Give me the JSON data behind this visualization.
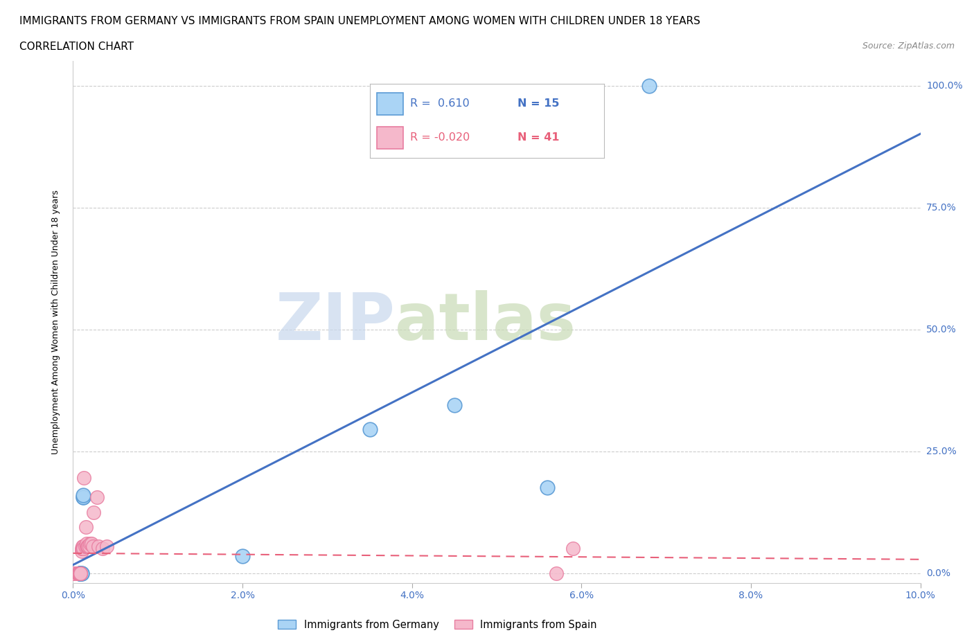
{
  "title_line1": "IMMIGRANTS FROM GERMANY VS IMMIGRANTS FROM SPAIN UNEMPLOYMENT AMONG WOMEN WITH CHILDREN UNDER 18 YEARS",
  "title_line2": "CORRELATION CHART",
  "source": "Source: ZipAtlas.com",
  "ylabel": "Unemployment Among Women with Children Under 18 years",
  "xlim": [
    0.0,
    0.1
  ],
  "ylim": [
    -0.02,
    1.05
  ],
  "xticks": [
    0.0,
    0.02,
    0.04,
    0.06,
    0.08,
    0.1
  ],
  "yticks": [
    0.0,
    0.25,
    0.5,
    0.75,
    1.0
  ],
  "xtick_labels": [
    "0.0%",
    "2.0%",
    "4.0%",
    "6.0%",
    "8.0%",
    "10.0%"
  ],
  "ytick_labels_right": [
    "0.0%",
    "25.0%",
    "50.0%",
    "75.0%",
    "100.0%"
  ],
  "germany_color": "#aad4f5",
  "spain_color": "#f5b8cb",
  "germany_edge": "#5b9bd5",
  "spain_edge": "#e87da0",
  "line_germany_color": "#4472c4",
  "line_spain_color": "#e8607a",
  "watermark_zip": "ZIP",
  "watermark_atlas": "atlas",
  "legend_R_germany": "R =  0.610",
  "legend_N_germany": "N = 15",
  "legend_R_spain": "R = -0.020",
  "legend_N_spain": "N = 41",
  "germany_points_x": [
    0.0008,
    0.0008,
    0.0008,
    0.0009,
    0.0009,
    0.001,
    0.001,
    0.0012,
    0.0012,
    0.0012,
    0.02,
    0.035,
    0.045,
    0.056,
    0.068
  ],
  "germany_points_y": [
    0.0,
    0.0,
    0.0,
    0.0,
    0.0,
    0.0,
    0.0,
    0.155,
    0.155,
    0.16,
    0.035,
    0.295,
    0.345,
    0.175,
    1.0
  ],
  "spain_points_x": [
    0.0,
    0.0,
    0.0,
    0.0005,
    0.0005,
    0.0006,
    0.0006,
    0.0007,
    0.0007,
    0.0007,
    0.0007,
    0.0008,
    0.0009,
    0.0009,
    0.0009,
    0.0009,
    0.001,
    0.001,
    0.0011,
    0.0011,
    0.0012,
    0.0012,
    0.0013,
    0.0014,
    0.0015,
    0.0016,
    0.0016,
    0.0017,
    0.0018,
    0.0018,
    0.0019,
    0.002,
    0.0022,
    0.0023,
    0.0024,
    0.0028,
    0.003,
    0.0035,
    0.004,
    0.057,
    0.059
  ],
  "spain_points_y": [
    0.0,
    0.0,
    0.0,
    0.0,
    0.0,
    0.0,
    0.0,
    0.0,
    0.0,
    0.0,
    0.0,
    0.0,
    0.0,
    0.0,
    0.0,
    0.0,
    0.045,
    0.05,
    0.05,
    0.055,
    0.055,
    0.05,
    0.195,
    0.055,
    0.095,
    0.055,
    0.06,
    0.055,
    0.055,
    0.055,
    0.055,
    0.06,
    0.06,
    0.055,
    0.125,
    0.155,
    0.055,
    0.05,
    0.055,
    0.0,
    0.05
  ],
  "title_fontsize": 11,
  "subtitle_fontsize": 11,
  "source_fontsize": 9,
  "axis_label_fontsize": 9,
  "tick_fontsize": 10,
  "background_color": "#ffffff",
  "grid_color": "#cccccc",
  "tick_color": "#4472c4"
}
